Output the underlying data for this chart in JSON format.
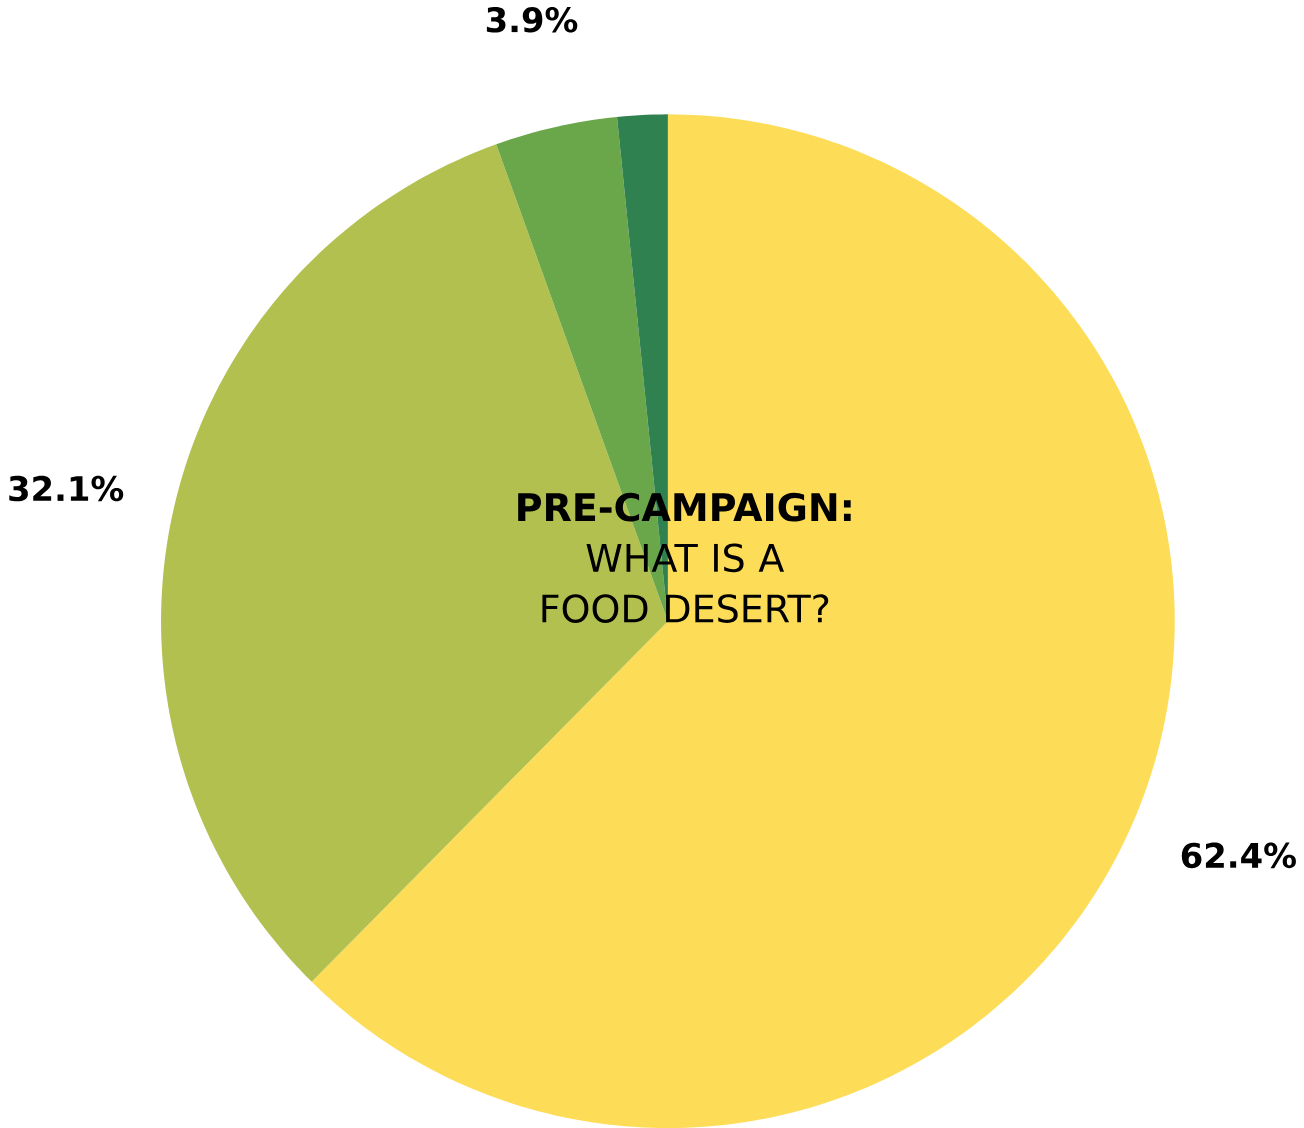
{
  "chart_data": {
    "type": "pie",
    "title": "**PRE-CAMPAIGN:** WHAT IS A FOOD DESERT?",
    "categories": [
      null,
      null,
      null,
      null
    ],
    "values": [
      62.4,
      32.1,
      3.9,
      1.6
    ],
    "colors": [
      "#fddc57",
      "#b2c04f",
      "#6aa64a",
      "#2f8150"
    ],
    "value_labels": [
      "62.4%",
      "32.1%",
      "3.9%",
      null
    ]
  }
}
